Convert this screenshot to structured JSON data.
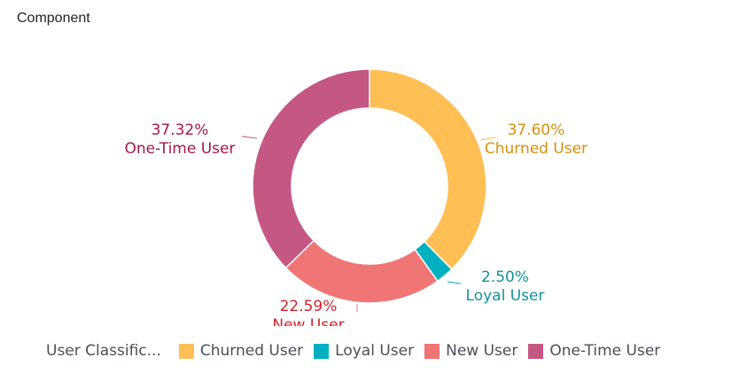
{
  "header": {
    "title": "Component"
  },
  "chart_data": {
    "type": "pie",
    "donut": true,
    "title": "Component",
    "legend_title": "User Classific...",
    "legend_position": "bottom-left",
    "slices": [
      {
        "label": "Churned User",
        "value": 37.6,
        "pct_label": "37.60%",
        "color": "#FFBF55",
        "label_color": "#D9900A"
      },
      {
        "label": "Loyal User",
        "value": 2.5,
        "pct_label": "2.50%",
        "color": "#00B0C1",
        "label_color": "#11939F"
      },
      {
        "label": "New User",
        "value": 22.59,
        "pct_label": "22.59%",
        "color": "#F07575",
        "label_color": "#D0242B"
      },
      {
        "label": "One-Time User",
        "value": 37.32,
        "pct_label": "37.32%",
        "color": "#C55784",
        "label_color": "#A3184E"
      }
    ]
  }
}
